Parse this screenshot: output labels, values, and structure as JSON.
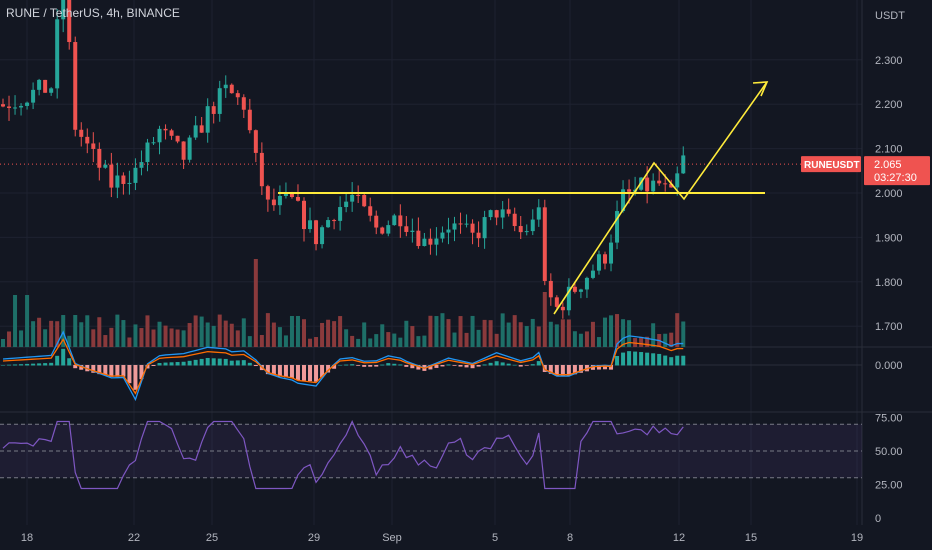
{
  "header": {
    "symbol": "RUNE / TetherUS",
    "interval": "4h",
    "exchange": "BINANCE",
    "currency": "USDT"
  },
  "price_label": {
    "ticker": "RUNEUSDT",
    "last_price": "2.065",
    "countdown": "03:27:30"
  },
  "colors": {
    "background": "#131722",
    "up": "#26a69a",
    "down": "#ef5350",
    "volume_up": "#1e6f68",
    "volume_down": "#8a3a3c",
    "drawing": "#ffeb3b",
    "macd": "#2196f3",
    "signal": "#ff6d00",
    "rsi": "#7e57c2",
    "grid": "#1e2230",
    "text": "#b2b5be"
  },
  "chart_data": [
    {
      "type": "candlestick",
      "pane": "price",
      "y_unit": "USDT",
      "y_ticks": [
        "2.300",
        "2.200",
        "2.100",
        "2.000",
        "1.900",
        "1.800",
        "1.700"
      ],
      "x_ticks": [
        "18",
        "22",
        "25",
        "29",
        "Sep",
        "5",
        "8",
        "12",
        "15",
        "19"
      ],
      "last_price": 2.065,
      "annotations": {
        "support_line_level": 2.0,
        "projection_arrow": "up-right"
      }
    },
    {
      "type": "bar",
      "pane": "volume",
      "label": "volume"
    },
    {
      "type": "line",
      "pane": "macd",
      "y_ticks": [
        "0.000"
      ],
      "series": [
        {
          "values": []
        },
        {
          "values": []
        }
      ]
    },
    {
      "type": "line",
      "pane": "rsi",
      "y_ticks": [
        "75.00",
        "50.00",
        "25.00",
        "0"
      ],
      "bands": [
        30,
        70
      ],
      "last_value": 68
    }
  ]
}
